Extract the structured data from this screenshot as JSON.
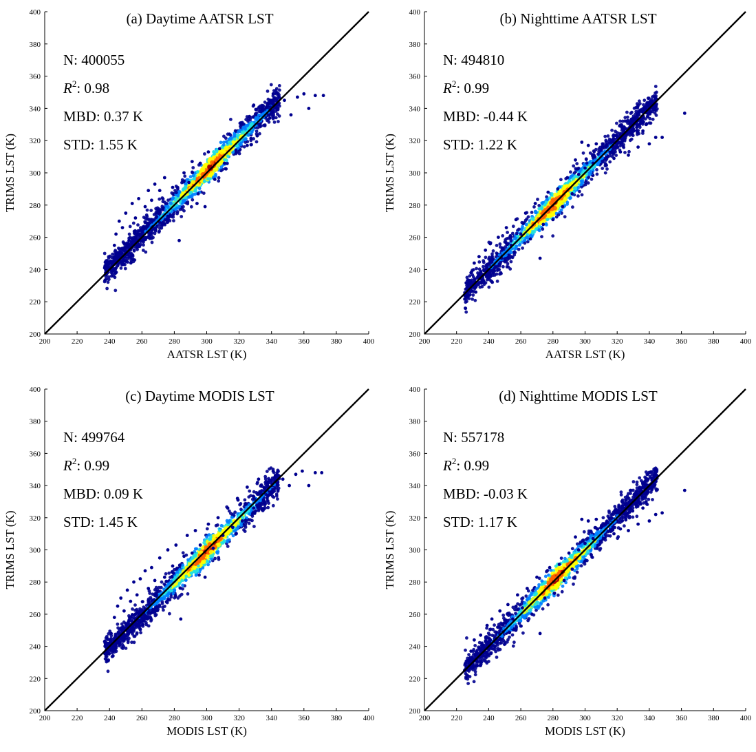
{
  "figure": {
    "panels": [
      {
        "title": "(a) Daytime AATSR LST",
        "xlabel": "AATSR LST (K)",
        "ylabel": "TRIMS LST (K)",
        "stats": {
          "n": "N: 400055",
          "r2_prefix": "R",
          "r2_sup": "2",
          "r2_value": ": 0.98",
          "mbd": "MBD: 0.37 K",
          "std": "STD: 1.55 K"
        }
      },
      {
        "title": "(b) Nighttime AATSR LST",
        "xlabel": "AATSR LST (K)",
        "ylabel": "TRIMS LST (K)",
        "stats": {
          "n": "N: 494810",
          "r2_prefix": "R",
          "r2_sup": "2",
          "r2_value": ": 0.99",
          "mbd": "MBD: -0.44 K",
          "std": "STD: 1.22 K"
        }
      },
      {
        "title": "(c) Daytime MODIS LST",
        "xlabel": "MODIS LST (K)",
        "ylabel": "TRIMS LST (K)",
        "stats": {
          "n": "N: 499764",
          "r2_prefix": "R",
          "r2_sup": "2",
          "r2_value": ": 0.99",
          "mbd": "MBD: 0.09 K",
          "std": "STD: 1.45 K"
        }
      },
      {
        "title": "(d) Nighttime MODIS LST",
        "xlabel": "MODIS LST (K)",
        "ylabel": "TRIMS LST (K)",
        "stats": {
          "n": "N: 557178",
          "r2_prefix": "R",
          "r2_sup": "2",
          "r2_value": ": 0.99",
          "mbd": "MBD: -0.03 K",
          "std": "STD: 1.17 K"
        }
      }
    ]
  },
  "colors": {
    "density_low": "#00008f",
    "density_mid_low": "#0080ff",
    "density_mid": "#20e0e0",
    "density_mid_high": "#ffff00",
    "density_high": "#ff6000",
    "density_peak": "#a00000",
    "one_to_one_line": "#000000"
  },
  "chart_data": [
    {
      "type": "scatter",
      "title": "(a) Daytime AATSR LST",
      "xlabel": "AATSR LST (K)",
      "ylabel": "TRIMS LST (K)",
      "xlim": [
        200,
        400
      ],
      "ylim": [
        200,
        400
      ],
      "xticks": [
        200,
        220,
        240,
        260,
        280,
        300,
        320,
        340,
        360,
        380,
        400
      ],
      "yticks": [
        200,
        220,
        240,
        260,
        280,
        300,
        320,
        340,
        360,
        380,
        400
      ],
      "reference_line": "1:1",
      "color_scale": "density (jet)",
      "distribution": {
        "x_range": [
          236,
          372
        ],
        "core_center": [
          302,
          303
        ],
        "y_range": [
          238,
          350
        ]
      },
      "points": [
        [
          237,
          241
        ],
        [
          238,
          239
        ],
        [
          240,
          244
        ],
        [
          243,
          255
        ],
        [
          244,
          262
        ],
        [
          246,
          270
        ],
        [
          248,
          266
        ],
        [
          250,
          275
        ],
        [
          252,
          258
        ],
        [
          254,
          281
        ],
        [
          256,
          272
        ],
        [
          258,
          284
        ],
        [
          261,
          258
        ],
        [
          262,
          279
        ],
        [
          264,
          289
        ],
        [
          266,
          283
        ],
        [
          268,
          293
        ],
        [
          271,
          289
        ],
        [
          274,
          297
        ],
        [
          276,
          273
        ],
        [
          279,
          291
        ],
        [
          283,
          258
        ],
        [
          286,
          300
        ],
        [
          289,
          294
        ],
        [
          291,
          307
        ],
        [
          294,
          281
        ],
        [
          296,
          306
        ],
        [
          299,
          279
        ],
        [
          301,
          313
        ],
        [
          305,
          296
        ],
        [
          308,
          315
        ],
        [
          311,
          306
        ],
        [
          314,
          324
        ],
        [
          318,
          314
        ],
        [
          321,
          331
        ],
        [
          325,
          317
        ],
        [
          329,
          342
        ],
        [
          333,
          330
        ],
        [
          337,
          341
        ],
        [
          339,
          334
        ],
        [
          341,
          349
        ],
        [
          344,
          340
        ],
        [
          348,
          345
        ],
        [
          352,
          336
        ],
        [
          356,
          347
        ],
        [
          360,
          349
        ],
        [
          363,
          340
        ],
        [
          367,
          348
        ],
        [
          372,
          348
        ]
      ],
      "stats": {
        "N": 400055,
        "R2": 0.98,
        "MBD_K": 0.37,
        "STD_K": 1.55
      }
    },
    {
      "type": "scatter",
      "title": "(b) Nighttime AATSR LST",
      "xlabel": "AATSR LST (K)",
      "ylabel": "TRIMS LST (K)",
      "xlim": [
        200,
        400
      ],
      "ylim": [
        200,
        400
      ],
      "xticks": [
        200,
        220,
        240,
        260,
        280,
        300,
        320,
        340,
        360,
        380,
        400
      ],
      "yticks": [
        200,
        220,
        240,
        260,
        280,
        300,
        320,
        340,
        360,
        380,
        400
      ],
      "reference_line": "1:1",
      "color_scale": "density (jet)",
      "distribution": {
        "x_range": [
          224,
          363
        ],
        "core_center": [
          280,
          280
        ],
        "y_range": [
          224,
          337
        ]
      },
      "points": [
        [
          225,
          224
        ],
        [
          227,
          231
        ],
        [
          229,
          238
        ],
        [
          231,
          244
        ],
        [
          232,
          226
        ],
        [
          234,
          248
        ],
        [
          236,
          236
        ],
        [
          238,
          252
        ],
        [
          241,
          256
        ],
        [
          243,
          238
        ],
        [
          246,
          260
        ],
        [
          248,
          247
        ],
        [
          251,
          266
        ],
        [
          254,
          255
        ],
        [
          257,
          271
        ],
        [
          260,
          262
        ],
        [
          263,
          275
        ],
        [
          266,
          259
        ],
        [
          269,
          281
        ],
        [
          272,
          247
        ],
        [
          274,
          268
        ],
        [
          277,
          288
        ],
        [
          280,
          271
        ],
        [
          283,
          290
        ],
        [
          286,
          279
        ],
        [
          289,
          297
        ],
        [
          292,
          287
        ],
        [
          294,
          308
        ],
        [
          296,
          299
        ],
        [
          298,
          319
        ],
        [
          300,
          303
        ],
        [
          302,
          317
        ],
        [
          305,
          306
        ],
        [
          307,
          318
        ],
        [
          310,
          314
        ],
        [
          313,
          316
        ],
        [
          318,
          309
        ],
        [
          322,
          313
        ],
        [
          327,
          311
        ],
        [
          333,
          316
        ],
        [
          336,
          326
        ],
        [
          338,
          330
        ],
        [
          340,
          318
        ],
        [
          344,
          322
        ],
        [
          348,
          322
        ],
        [
          362,
          337
        ]
      ],
      "stats": {
        "N": 494810,
        "R2": 0.99,
        "MBD_K": -0.44,
        "STD_K": 1.22
      }
    },
    {
      "type": "scatter",
      "title": "(c) Daytime MODIS LST",
      "xlabel": "MODIS LST (K)",
      "ylabel": "TRIMS LST (K)",
      "xlim": [
        200,
        400
      ],
      "ylim": [
        200,
        400
      ],
      "xticks": [
        200,
        220,
        240,
        260,
        280,
        300,
        320,
        340,
        360,
        380,
        400
      ],
      "yticks": [
        200,
        220,
        240,
        260,
        280,
        300,
        320,
        340,
        360,
        380,
        400
      ],
      "reference_line": "1:1",
      "color_scale": "density (jet)",
      "distribution": {
        "x_range": [
          236,
          372
        ],
        "core_center": [
          300,
          299
        ],
        "y_range": [
          238,
          350
        ]
      },
      "points": [
        [
          237,
          243
        ],
        [
          239,
          238
        ],
        [
          241,
          248
        ],
        [
          243,
          258
        ],
        [
          245,
          265
        ],
        [
          247,
          270
        ],
        [
          249,
          262
        ],
        [
          251,
          275
        ],
        [
          253,
          268
        ],
        [
          255,
          280
        ],
        [
          257,
          272
        ],
        [
          259,
          282
        ],
        [
          262,
          287
        ],
        [
          264,
          276
        ],
        [
          266,
          289
        ],
        [
          268,
          281
        ],
        [
          271,
          295
        ],
        [
          274,
          283
        ],
        [
          276,
          300
        ],
        [
          279,
          290
        ],
        [
          281,
          303
        ],
        [
          284,
          257
        ],
        [
          286,
          296
        ],
        [
          288,
          309
        ],
        [
          291,
          298
        ],
        [
          293,
          312
        ],
        [
          296,
          303
        ],
        [
          299,
          283
        ],
        [
          301,
          316
        ],
        [
          304,
          301
        ],
        [
          307,
          320
        ],
        [
          310,
          309
        ],
        [
          313,
          326
        ],
        [
          316,
          314
        ],
        [
          319,
          332
        ],
        [
          322,
          318
        ],
        [
          325,
          339
        ],
        [
          329,
          326
        ],
        [
          332,
          344
        ],
        [
          335,
          331
        ],
        [
          338,
          342
        ],
        [
          341,
          349
        ],
        [
          344,
          337
        ],
        [
          347,
          344
        ],
        [
          351,
          340
        ],
        [
          355,
          347
        ],
        [
          359,
          349
        ],
        [
          363,
          340
        ],
        [
          367,
          348
        ],
        [
          371,
          348
        ]
      ],
      "stats": {
        "N": 499764,
        "R2": 0.99,
        "MBD_K": 0.09,
        "STD_K": 1.45
      }
    },
    {
      "type": "scatter",
      "title": "(d) Nighttime MODIS LST",
      "xlabel": "MODIS LST (K)",
      "ylabel": "TRIMS LST (K)",
      "xlim": [
        200,
        400
      ],
      "ylim": [
        200,
        400
      ],
      "xticks": [
        200,
        220,
        240,
        260,
        280,
        300,
        320,
        340,
        360,
        380,
        400
      ],
      "yticks": [
        200,
        220,
        240,
        260,
        280,
        300,
        320,
        340,
        360,
        380,
        400
      ],
      "reference_line": "1:1",
      "color_scale": "density (jet)",
      "distribution": {
        "x_range": [
          224,
          363
        ],
        "core_center": [
          282,
          282
        ],
        "y_range": [
          224,
          337
        ]
      },
      "points": [
        [
          225,
          225
        ],
        [
          227,
          231
        ],
        [
          229,
          237
        ],
        [
          231,
          244
        ],
        [
          233,
          228
        ],
        [
          235,
          247
        ],
        [
          237,
          238
        ],
        [
          239,
          253
        ],
        [
          242,
          257
        ],
        [
          244,
          240
        ],
        [
          247,
          262
        ],
        [
          249,
          249
        ],
        [
          252,
          266
        ],
        [
          255,
          257
        ],
        [
          258,
          272
        ],
        [
          261,
          264
        ],
        [
          264,
          276
        ],
        [
          267,
          260
        ],
        [
          270,
          283
        ],
        [
          272,
          248
        ],
        [
          275,
          270
        ],
        [
          278,
          289
        ],
        [
          281,
          273
        ],
        [
          284,
          291
        ],
        [
          287,
          281
        ],
        [
          290,
          298
        ],
        [
          292,
          288
        ],
        [
          294,
          308
        ],
        [
          296,
          300
        ],
        [
          298,
          319
        ],
        [
          300,
          304
        ],
        [
          302,
          318
        ],
        [
          305,
          307
        ],
        [
          307,
          319
        ],
        [
          310,
          314
        ],
        [
          313,
          316
        ],
        [
          318,
          310
        ],
        [
          322,
          313
        ],
        [
          327,
          312
        ],
        [
          333,
          316
        ],
        [
          336,
          326
        ],
        [
          338,
          330
        ],
        [
          340,
          318
        ],
        [
          344,
          322
        ],
        [
          348,
          323
        ],
        [
          362,
          337
        ]
      ],
      "stats": {
        "N": 557178,
        "R2": 0.99,
        "MBD_K": -0.03,
        "STD_K": 1.17
      }
    }
  ]
}
